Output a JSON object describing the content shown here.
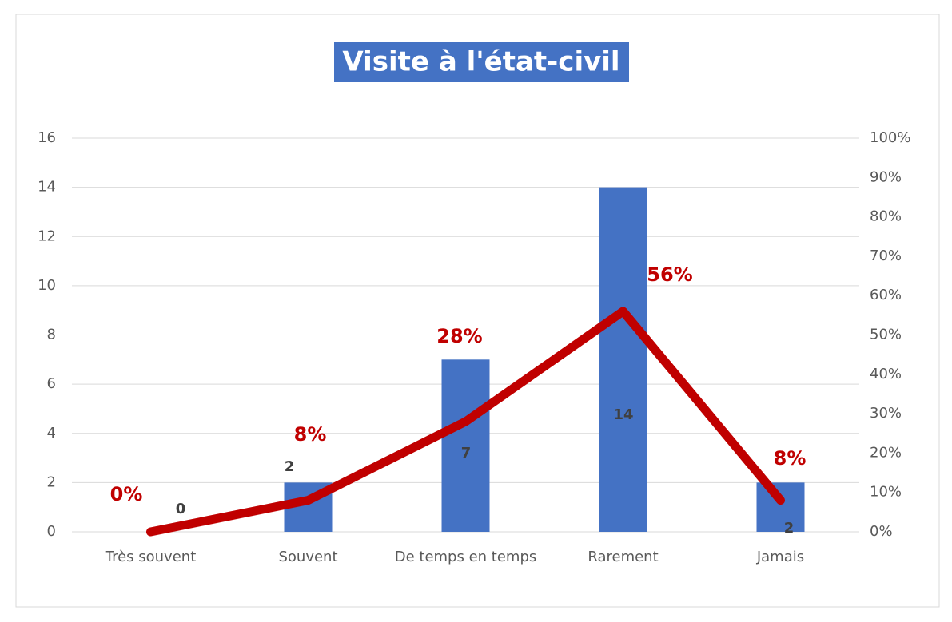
{
  "chart_data": {
    "type": "bar",
    "title": "Visite à l'état-civil",
    "categories": [
      "Très souvent",
      "Souvent",
      "De temps en temps",
      "Rarement",
      "Jamais"
    ],
    "series": [
      {
        "color": "#4472c4",
        "values": [
          0,
          2,
          7,
          14,
          2
        ]
      },
      {
        "type": "line",
        "axis": "y2",
        "color": "#c00000",
        "values": [
          0,
          8,
          28,
          56,
          8
        ],
        "value_labels": [
          "0%",
          "8%",
          "28%",
          "56%",
          "8%"
        ]
      }
    ],
    "ylim": [
      0,
      16
    ],
    "yticks": [
      0,
      2,
      4,
      6,
      8,
      10,
      12,
      14,
      16
    ],
    "y2lim": [
      0,
      100
    ],
    "y2ticks": [
      {
        "value": 0,
        "label": "0%"
      },
      {
        "value": 10,
        "label": "10%"
      },
      {
        "value": 20,
        "label": "20%"
      },
      {
        "value": 30,
        "label": "30%"
      },
      {
        "value": 40,
        "label": "40%"
      },
      {
        "value": 50,
        "label": "50%"
      },
      {
        "value": 60,
        "label": "60%"
      },
      {
        "value": 70,
        "label": "70%"
      },
      {
        "value": 80,
        "label": "80%"
      },
      {
        "value": 90,
        "label": "90%"
      },
      {
        "value": 100,
        "label": "100%"
      }
    ],
    "grid": true
  }
}
